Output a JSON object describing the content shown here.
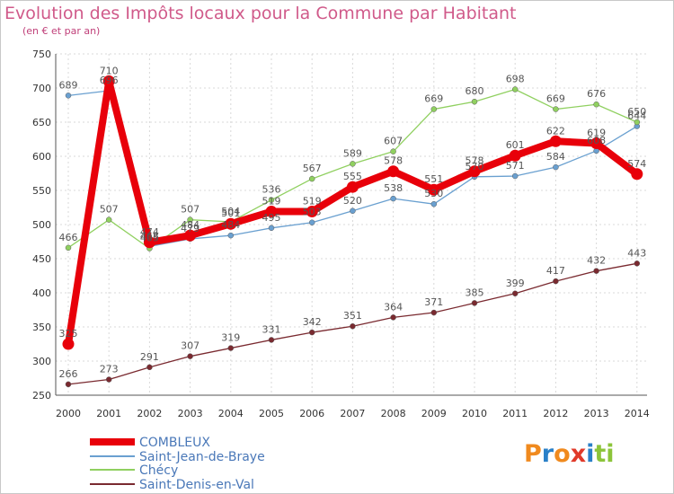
{
  "title": "Evolution des Impôts locaux pour la Commune par Habitant",
  "subtitle": "(en € et par an)",
  "logo": {
    "letters": [
      "P",
      "r",
      "o",
      "x",
      "i",
      "t",
      "i"
    ],
    "colors": [
      "#f08a1e",
      "#2a80c8",
      "#f08a1e",
      "#e03a2a",
      "#2a80c8",
      "#8cc43a",
      "#8cc43a"
    ]
  },
  "chart_data": {
    "type": "line",
    "x": [
      "2000",
      "2001",
      "2002",
      "2003",
      "2004",
      "2005",
      "2006",
      "2007",
      "2008",
      "2009",
      "2010",
      "2011",
      "2012",
      "2013",
      "2014"
    ],
    "ylim": [
      250,
      750
    ],
    "yticks": [
      250,
      300,
      350,
      400,
      450,
      500,
      550,
      600,
      650,
      700,
      750
    ],
    "grid": true,
    "legend_position": "bottom-left",
    "series": [
      {
        "name": "COMBLEUX",
        "color": "#e8000a",
        "values": [
          325,
          710,
          474,
          484,
          501,
          519,
          519,
          555,
          578,
          551,
          578,
          601,
          622,
          619,
          574
        ]
      },
      {
        "name": "Saint-Jean-de-Braye",
        "color": "#6aa0d0",
        "values": [
          689,
          696,
          468,
          479,
          484,
          495,
          503,
          520,
          538,
          530,
          570,
          571,
          584,
          608,
          644
        ]
      },
      {
        "name": "Chécy",
        "color": "#90d060",
        "values": [
          466,
          507,
          465,
          507,
          504,
          536,
          567,
          589,
          607,
          669,
          680,
          698,
          669,
          676,
          650
        ]
      },
      {
        "name": "Saint-Denis-en-Val",
        "color": "#7a2a30",
        "values": [
          266,
          273,
          291,
          307,
          319,
          331,
          342,
          351,
          364,
          371,
          385,
          399,
          417,
          432,
          443
        ]
      }
    ]
  }
}
